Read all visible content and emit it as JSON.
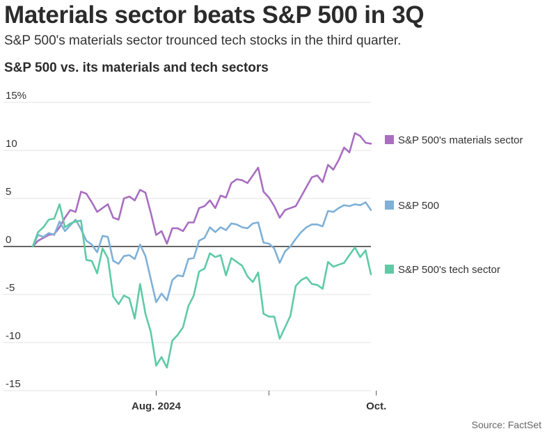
{
  "header": {
    "title": "Materials sector beats S&P 500 in 3Q",
    "subtitle": "S&P 500's materials sector trounced tech stocks in the third quarter."
  },
  "source": "Source: FactSet",
  "chart_data": {
    "type": "line",
    "title": "S&P 500 vs. its materials and tech sectors",
    "xlabel": "",
    "ylabel": "",
    "ylim": [
      -15,
      15
    ],
    "yticks": [
      15,
      10,
      5,
      0,
      -5,
      -10,
      -15
    ],
    "ytick_labels": [
      "15%",
      "10",
      "5",
      "0",
      "-5",
      "-10",
      "-15"
    ],
    "xticks": [
      {
        "index": 23,
        "label": "Aug. 2024",
        "show_label": true
      },
      {
        "index": 44,
        "label": "",
        "show_label": false
      },
      {
        "index": 64,
        "label": "Oct.",
        "show_label": true
      }
    ],
    "grid": true,
    "legend": "right",
    "series": [
      {
        "name": "S&P 500's materials sector",
        "color": "#a86ec0",
        "values": [
          0,
          0.6,
          0.9,
          1.2,
          1.3,
          2.0,
          3.0,
          3.8,
          3.6,
          5.7,
          5.5,
          4.6,
          3.6,
          4.0,
          4.4,
          3.0,
          2.8,
          5.0,
          5.2,
          4.8,
          5.9,
          5.6,
          3.5,
          1.2,
          1.6,
          0.3,
          1.9,
          1.9,
          1.6,
          2.5,
          2.5,
          4.0,
          4.2,
          4.8,
          4.0,
          5.3,
          5.1,
          6.6,
          7.0,
          6.9,
          6.6,
          7.4,
          8.2,
          5.7,
          5.1,
          4.2,
          3.0,
          3.8,
          4.0,
          4.2,
          5.2,
          6.2,
          7.2,
          7.4,
          6.7,
          8.5,
          8.0,
          9.0,
          10.3,
          9.8,
          11.8,
          11.5,
          10.8,
          10.7
        ]
      },
      {
        "name": "S&P 500",
        "color": "#7fb0d8",
        "values": [
          0,
          1.2,
          1.0,
          1.4,
          1.2,
          2.6,
          1.6,
          2.2,
          2.8,
          1.8,
          0.6,
          0.2,
          -0.6,
          1.1,
          1.0,
          -1.5,
          -1.8,
          -1.0,
          -0.9,
          -1.3,
          0.2,
          -1.0,
          -3.4,
          -5.8,
          -4.9,
          -5.6,
          -3.5,
          -3.0,
          -3.1,
          -1.3,
          -1.2,
          0.6,
          0.9,
          2.0,
          1.5,
          2.0,
          1.7,
          2.4,
          2.3,
          2.0,
          1.9,
          2.4,
          2.5,
          0.4,
          0.3,
          -0.2,
          -1.7,
          -0.5,
          0.0,
          0.8,
          1.5,
          2.0,
          2.3,
          2.3,
          2.1,
          3.7,
          3.6,
          4.0,
          4.3,
          4.2,
          4.4,
          4.3,
          4.6,
          3.8
        ]
      },
      {
        "name": "S&P 500's tech sector",
        "color": "#5fcaa5",
        "values": [
          0,
          1.5,
          2.0,
          2.8,
          2.9,
          4.4,
          2.0,
          2.4,
          2.6,
          2.7,
          -1.4,
          -1.5,
          -2.8,
          -0.2,
          -1.2,
          -5.2,
          -6.0,
          -5.1,
          -5.4,
          -7.5,
          -3.9,
          -7.0,
          -8.9,
          -12.4,
          -11.5,
          -12.6,
          -9.8,
          -9.2,
          -8.4,
          -6.2,
          -5.1,
          -2.6,
          -2.3,
          -0.7,
          -1.1,
          -0.9,
          -3.0,
          -1.2,
          -1.6,
          -2.0,
          -3.1,
          -3.7,
          -2.7,
          -7.0,
          -7.3,
          -7.3,
          -9.6,
          -8.4,
          -7.2,
          -4.1,
          -3.5,
          -3.2,
          -3.9,
          -4.0,
          -4.4,
          -1.6,
          -2.1,
          -1.9,
          -1.7,
          -0.9,
          -0.1,
          -1.1,
          -0.4,
          -2.9
        ]
      }
    ]
  }
}
